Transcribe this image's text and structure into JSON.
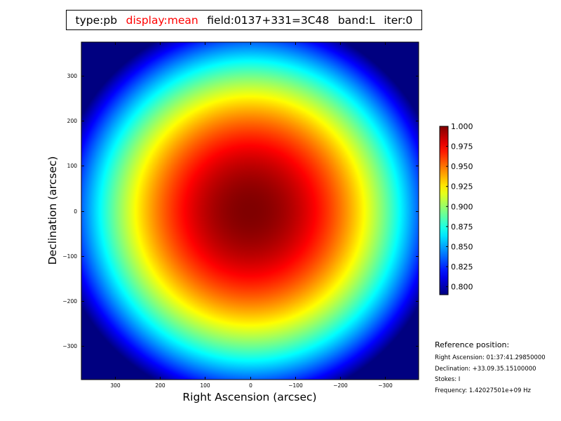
{
  "title_bar": {
    "items": [
      {
        "text": "type:pb",
        "color": "#000000"
      },
      {
        "text": "display:mean",
        "color": "#ff0000"
      },
      {
        "text": "field:0137+331=3C48",
        "color": "#000000"
      },
      {
        "text": "band:L",
        "color": "#000000"
      },
      {
        "text": "iter:0",
        "color": "#000000"
      }
    ]
  },
  "reference_info": {
    "title": "Reference position:",
    "lines": [
      "Right Ascension: 01:37:41.29850000",
      "Declination: +33.09.35.15100000",
      "Stokes: I",
      "Frequency: 1.42027501e+09 Hz"
    ]
  },
  "chart_data": {
    "type": "heatmap",
    "title": "",
    "xlabel": "Right Ascension (arcsec)",
    "ylabel": "Declination (arcsec)",
    "xlim": [
      375,
      -375
    ],
    "ylim": [
      -375,
      375
    ],
    "x_ticks": [
      300,
      200,
      100,
      0,
      -100,
      -200,
      -300
    ],
    "x_tick_labels": [
      "300",
      "200",
      "100",
      "0",
      "−100",
      "−200",
      "−300"
    ],
    "y_ticks": [
      300,
      200,
      100,
      0,
      -100,
      -200,
      -300
    ],
    "y_tick_labels": [
      "300",
      "200",
      "100",
      "0",
      "−100",
      "−200",
      "−300"
    ],
    "colormap": "jet",
    "value_range": [
      0.79,
      1.0
    ],
    "center": [
      0,
      0
    ],
    "peak_value": 1.0,
    "edge_values": {
      "x_300": 0.892,
      "x_375": 0.84,
      "corner": 0.75
    },
    "grid": false,
    "colorbar": {
      "ticks": [
        1.0,
        0.975,
        0.95,
        0.925,
        0.9,
        0.875,
        0.85,
        0.825,
        0.8
      ],
      "tick_labels": [
        "1.000",
        "0.975",
        "0.950",
        "0.925",
        "0.900",
        "0.875",
        "0.850",
        "0.825",
        "0.800"
      ]
    }
  }
}
